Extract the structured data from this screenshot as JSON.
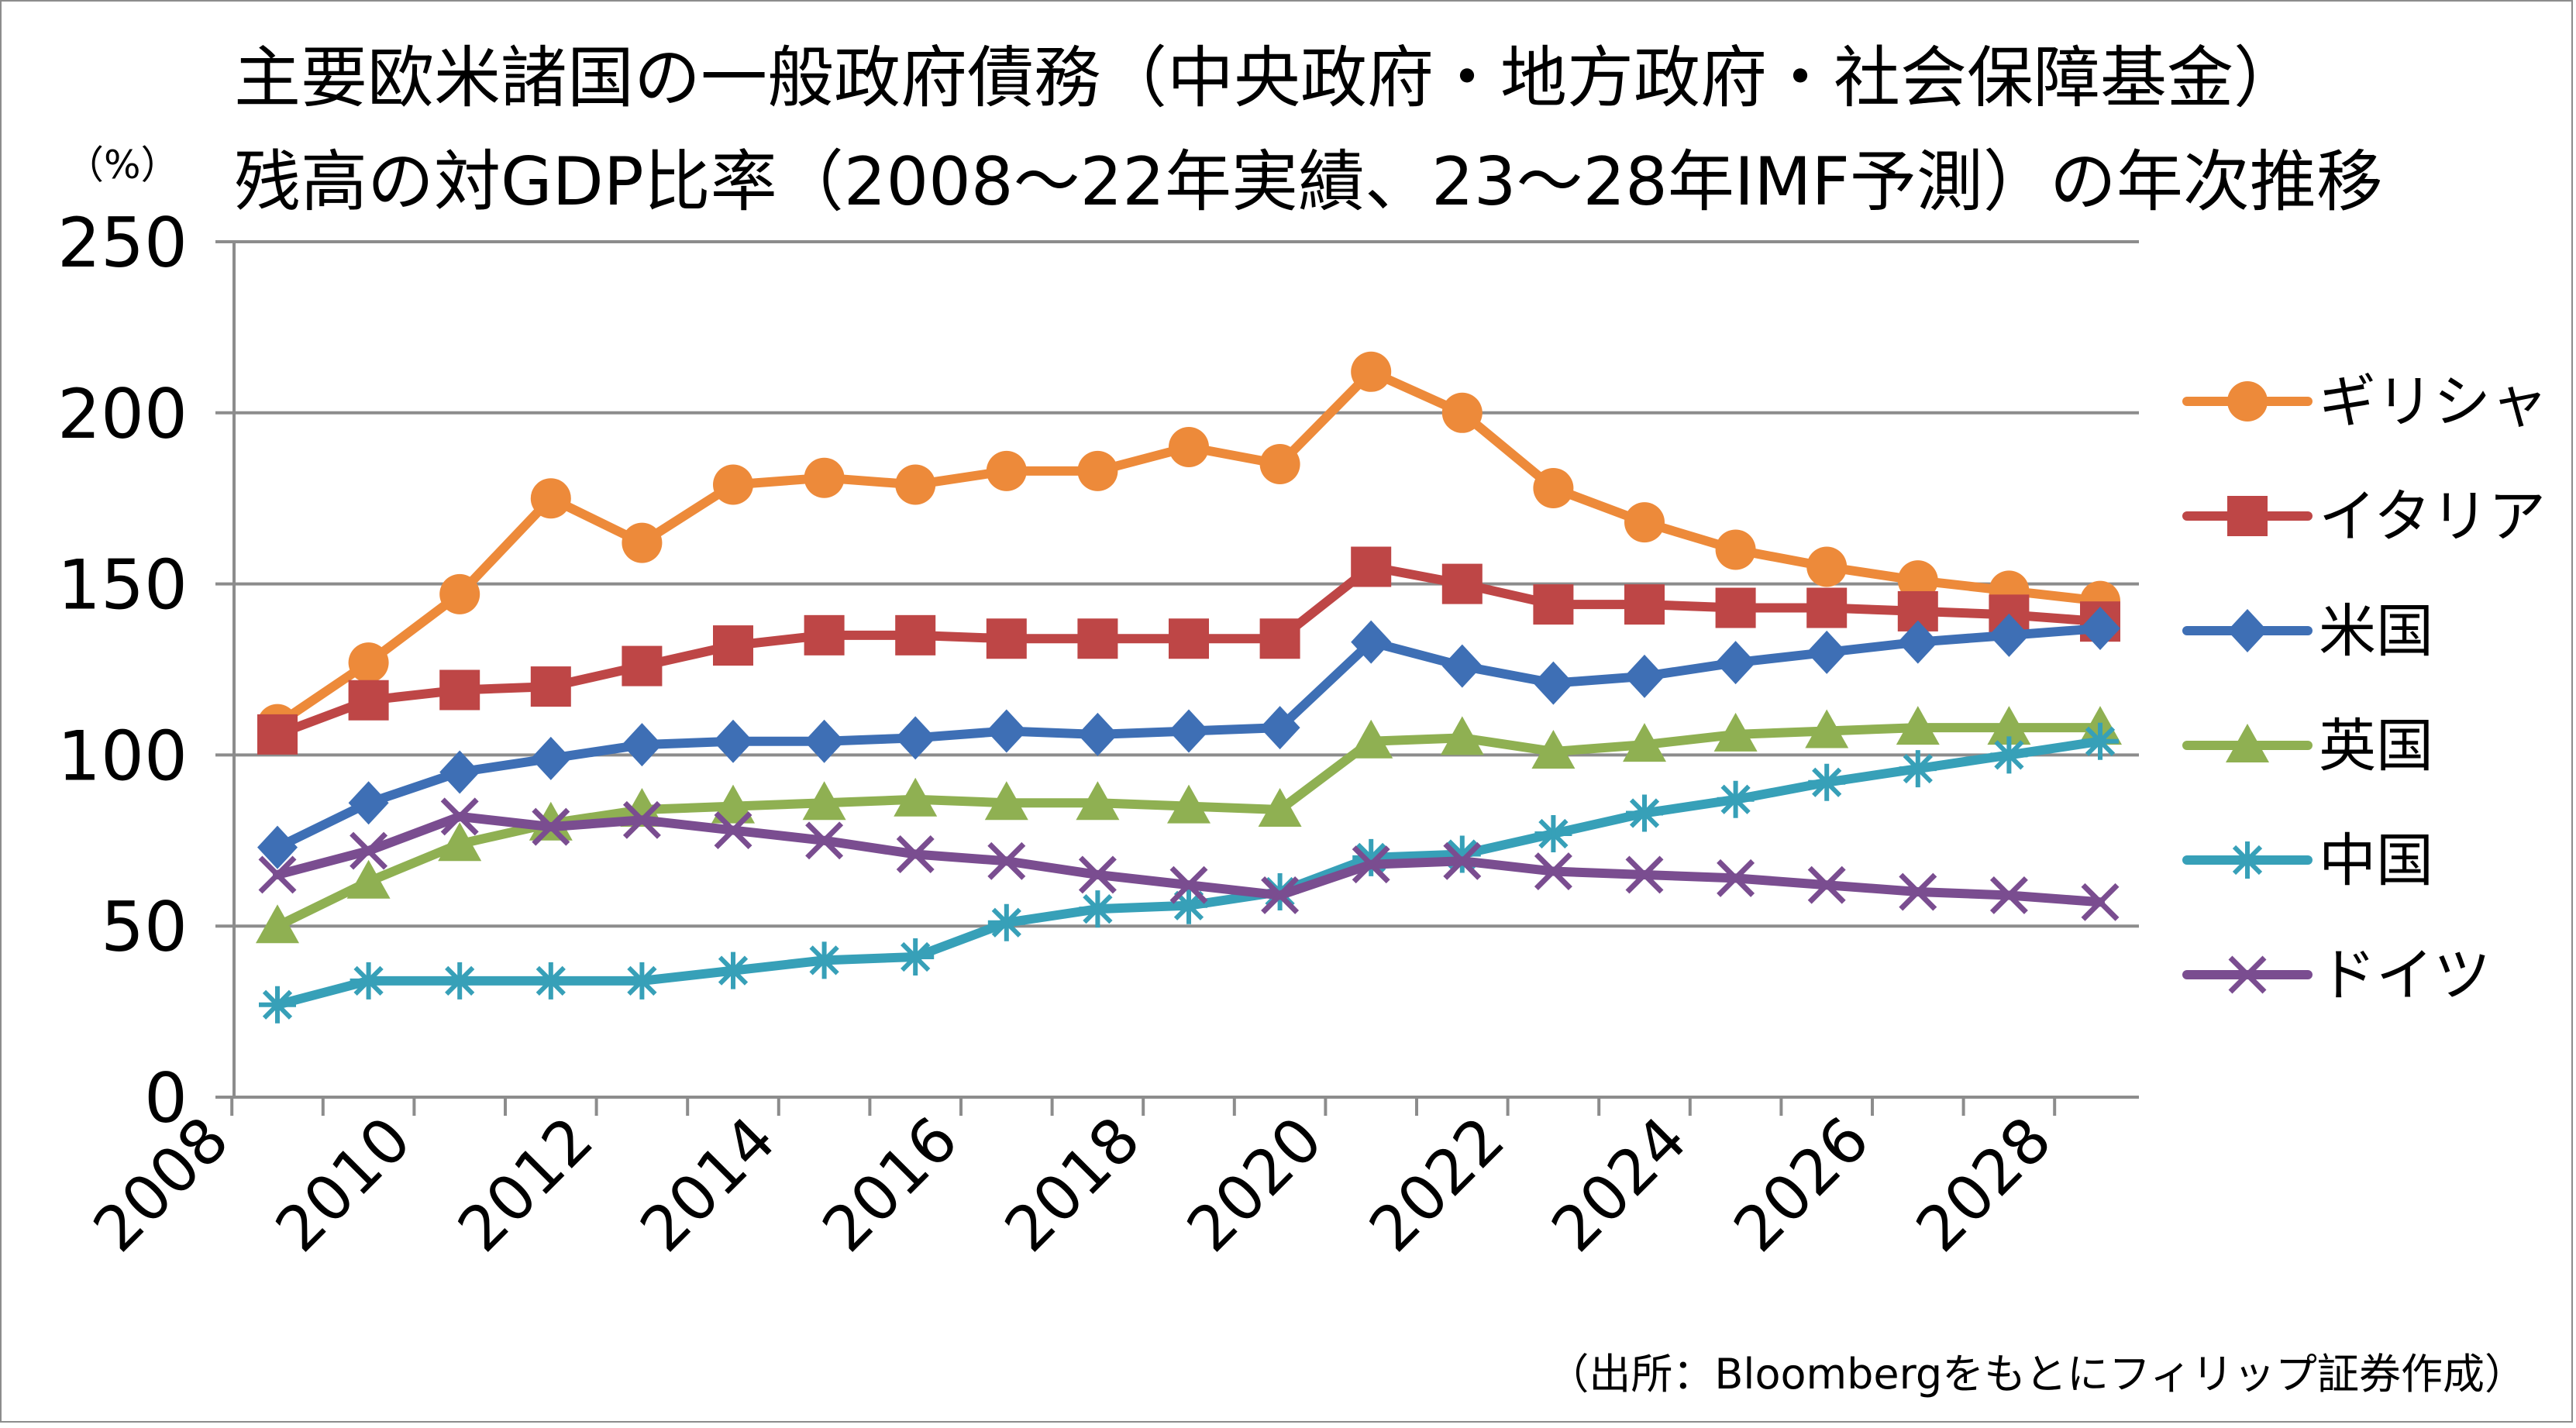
{
  "chart_data": {
    "type": "line",
    "title": "主要欧米諸国の一般政府債務（中央政府・地方政府・社会保障基金）",
    "subtitle": "残高の対GDP比率（2008〜22年実績、23〜28年IMF予測）の年次推移",
    "ylabel": "（%）",
    "xlabel": "",
    "ylim": [
      0,
      250
    ],
    "yticks": [
      0,
      50,
      100,
      150,
      200,
      250
    ],
    "xticks": [
      "2008",
      "2010",
      "2012",
      "2014",
      "2016",
      "2018",
      "2020",
      "2022",
      "2024",
      "2026",
      "2028"
    ],
    "x": [
      2008,
      2009,
      2010,
      2011,
      2012,
      2013,
      2014,
      2015,
      2016,
      2017,
      2018,
      2019,
      2020,
      2021,
      2022,
      2023,
      2024,
      2025,
      2026,
      2027,
      2028
    ],
    "grid": true,
    "legend_position": "right",
    "series": [
      {
        "name": "ギリシャ",
        "color": "#ED8A3A",
        "marker": "circle",
        "values": [
          109,
          127,
          147,
          175,
          162,
          179,
          181,
          179,
          183,
          183,
          190,
          185,
          212,
          200,
          178,
          168,
          160,
          155,
          151,
          148,
          145
        ]
      },
      {
        "name": "イタリア",
        "color": "#BE4646",
        "marker": "square",
        "values": [
          106,
          116,
          119,
          120,
          126,
          132,
          135,
          135,
          134,
          134,
          134,
          134,
          155,
          150,
          144,
          144,
          143,
          143,
          142,
          141,
          139
        ]
      },
      {
        "name": "米国",
        "color": "#3E6FB5",
        "marker": "diamond",
        "values": [
          73,
          86,
          95,
          99,
          103,
          104,
          104,
          105,
          107,
          106,
          107,
          108,
          133,
          126,
          121,
          123,
          127,
          130,
          133,
          135,
          137
        ]
      },
      {
        "name": "英国",
        "color": "#8FB052",
        "marker": "triangle",
        "values": [
          50,
          63,
          74,
          80,
          84,
          85,
          86,
          87,
          86,
          86,
          85,
          84,
          104,
          105,
          101,
          103,
          106,
          107,
          108,
          108,
          108
        ]
      },
      {
        "name": "中国",
        "color": "#37A0B8",
        "marker": "asterisk",
        "values": [
          27,
          34,
          34,
          34,
          34,
          37,
          40,
          41,
          51,
          55,
          56,
          60,
          70,
          71,
          77,
          83,
          87,
          92,
          96,
          100,
          104
        ]
      },
      {
        "name": "ドイツ",
        "color": "#7A4D90",
        "marker": "x",
        "values": [
          65,
          72,
          82,
          79,
          81,
          78,
          75,
          71,
          69,
          65,
          62,
          59,
          68,
          69,
          66,
          65,
          64,
          62,
          60,
          59,
          57
        ]
      }
    ]
  },
  "source": "（出所：Bloombergをもとにフィリップ証券作成）"
}
